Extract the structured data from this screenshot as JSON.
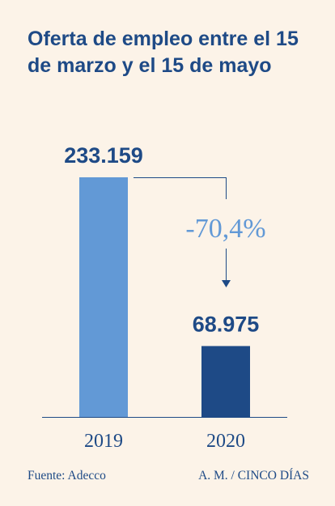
{
  "title": "Oferta de empleo entre el 15 de marzo y el 15 de mayo",
  "chart_data": {
    "type": "bar",
    "categories": [
      "2019",
      "2020"
    ],
    "values": [
      233159,
      68975
    ],
    "value_labels": [
      "233.159",
      "68.975"
    ],
    "change_label": "-70,4%",
    "ylim": [
      0,
      233159
    ],
    "colors": {
      "bar_2019": "#6299d6",
      "bar_2020": "#1e4a86",
      "value_text": "#1e4a86",
      "change_text": "#6299d6",
      "arrow": "#1e4a86",
      "axis": "#1e4a86"
    }
  },
  "footer": {
    "source": "Fuente: Adecco",
    "credit": "A. M. / CINCO DÍAS"
  }
}
